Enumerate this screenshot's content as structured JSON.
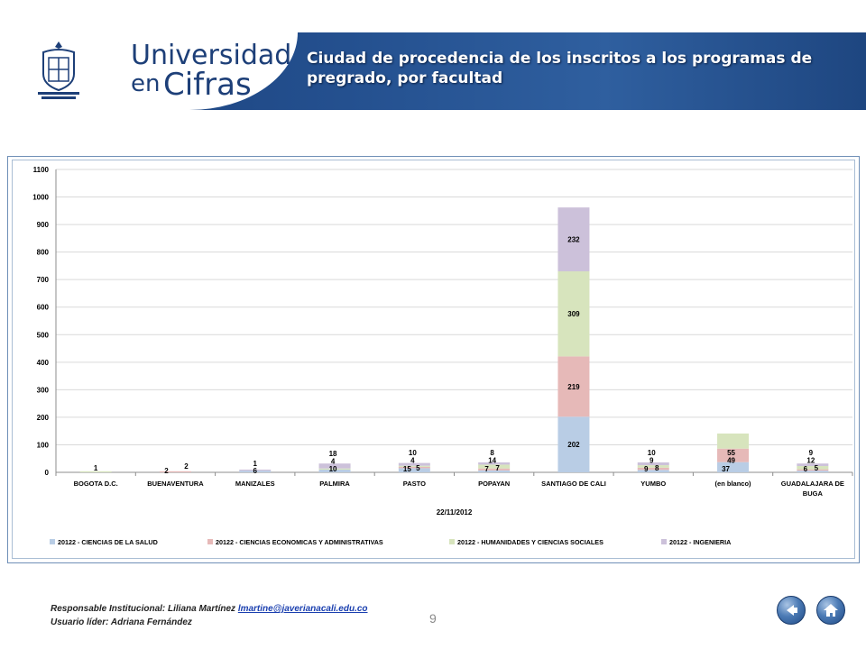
{
  "header": {
    "brand_line1": "Universidad",
    "brand_line2a": "en",
    "brand_line2b": "Cifras",
    "title": "Ciudad de procedencia de los inscritos a los programas de pregrado, por facultad",
    "colors": {
      "band": "#24508f",
      "brand_text": "#1d3f78"
    }
  },
  "chart_data": {
    "type": "bar",
    "stacked": true,
    "categories": [
      "BOGOTA D.C.",
      "BUENAVENTURA",
      "MANIZALES",
      "PALMIRA",
      "PASTO",
      "POPAYAN",
      "SANTIAGO DE CALI",
      "YUMBO",
      "(en blanco)",
      "GUADALAJARA DE BUGA"
    ],
    "series": [
      {
        "name": "20122 - CIENCIAS DE LA SALUD",
        "color": "#b9cde5",
        "values": [
          0,
          0,
          6,
          10,
          15,
          7,
          202,
          9,
          37,
          6
        ]
      },
      {
        "name": "20122 - CIENCIAS ECONOMICAS Y ADMINISTRATIVAS",
        "color": "#e6b9b8",
        "values": [
          0,
          2,
          0,
          0,
          5,
          7,
          219,
          8,
          49,
          5
        ]
      },
      {
        "name": "20122 - HUMANIDADES Y CIENCIAS SOCIALES",
        "color": "#d7e4bd",
        "values": [
          1,
          0,
          0,
          4,
          4,
          14,
          309,
          9,
          55,
          12
        ]
      },
      {
        "name": "20122 - INGENIERIA",
        "color": "#ccc1da",
        "values": [
          0,
          0,
          1,
          18,
          10,
          8,
          232,
          10,
          0,
          9
        ]
      }
    ],
    "data_labels": [
      {
        "category": "BOGOTA D.C.",
        "text": "1"
      },
      {
        "category": "BUENAVENTURA",
        "text": "2"
      },
      {
        "category": "BUENAVENTURA",
        "text": "2"
      },
      {
        "category": "MANIZALES",
        "text": "6"
      },
      {
        "category": "MANIZALES",
        "text": "1"
      },
      {
        "category": "PALMIRA",
        "text": "10"
      },
      {
        "category": "PALMIRA",
        "text": "4"
      },
      {
        "category": "PALMIRA",
        "text": "18"
      },
      {
        "category": "PASTO",
        "text": "15"
      },
      {
        "category": "PASTO",
        "text": "5"
      },
      {
        "category": "PASTO",
        "text": "4"
      },
      {
        "category": "PASTO",
        "text": "10"
      },
      {
        "category": "POPAYAN",
        "text": "7"
      },
      {
        "category": "POPAYAN",
        "text": "7"
      },
      {
        "category": "POPAYAN",
        "text": "14"
      },
      {
        "category": "POPAYAN",
        "text": "8"
      },
      {
        "category": "SANTIAGO DE CALI",
        "text": "202"
      },
      {
        "category": "SANTIAGO DE CALI",
        "text": "219"
      },
      {
        "category": "SANTIAGO DE CALI",
        "text": "309"
      },
      {
        "category": "SANTIAGO DE CALI",
        "text": "232"
      },
      {
        "category": "YUMBO",
        "text": "9"
      },
      {
        "category": "YUMBO",
        "text": "8"
      },
      {
        "category": "YUMBO",
        "text": "9"
      },
      {
        "category": "YUMBO",
        "text": "10"
      },
      {
        "category": "(en blanco)",
        "text": "37"
      },
      {
        "category": "(en blanco)",
        "text": "49"
      },
      {
        "category": "(en blanco)",
        "text": "55"
      },
      {
        "category": "GUADALAJARA DE BUGA",
        "text": "6"
      },
      {
        "category": "GUADALAJARA DE BUGA",
        "text": "5"
      },
      {
        "category": "GUADALAJARA DE BUGA",
        "text": "12"
      },
      {
        "category": "GUADALAJARA DE BUGA",
        "text": "9"
      }
    ],
    "ylim": [
      0,
      1100
    ],
    "yticks": [
      0,
      100,
      200,
      300,
      400,
      500,
      600,
      700,
      800,
      900,
      1000,
      1100
    ],
    "xlabel": "22/11/2012",
    "ylabel": "",
    "title": "",
    "grid": true,
    "legend": "bottom"
  },
  "footer": {
    "line1_text": "Responsable Institucional: Liliana Martínez ",
    "email": "lmartine@javerianacali.edu.co",
    "line2_text": "Usuario líder: Adriana Fernández",
    "page_number": "9"
  }
}
